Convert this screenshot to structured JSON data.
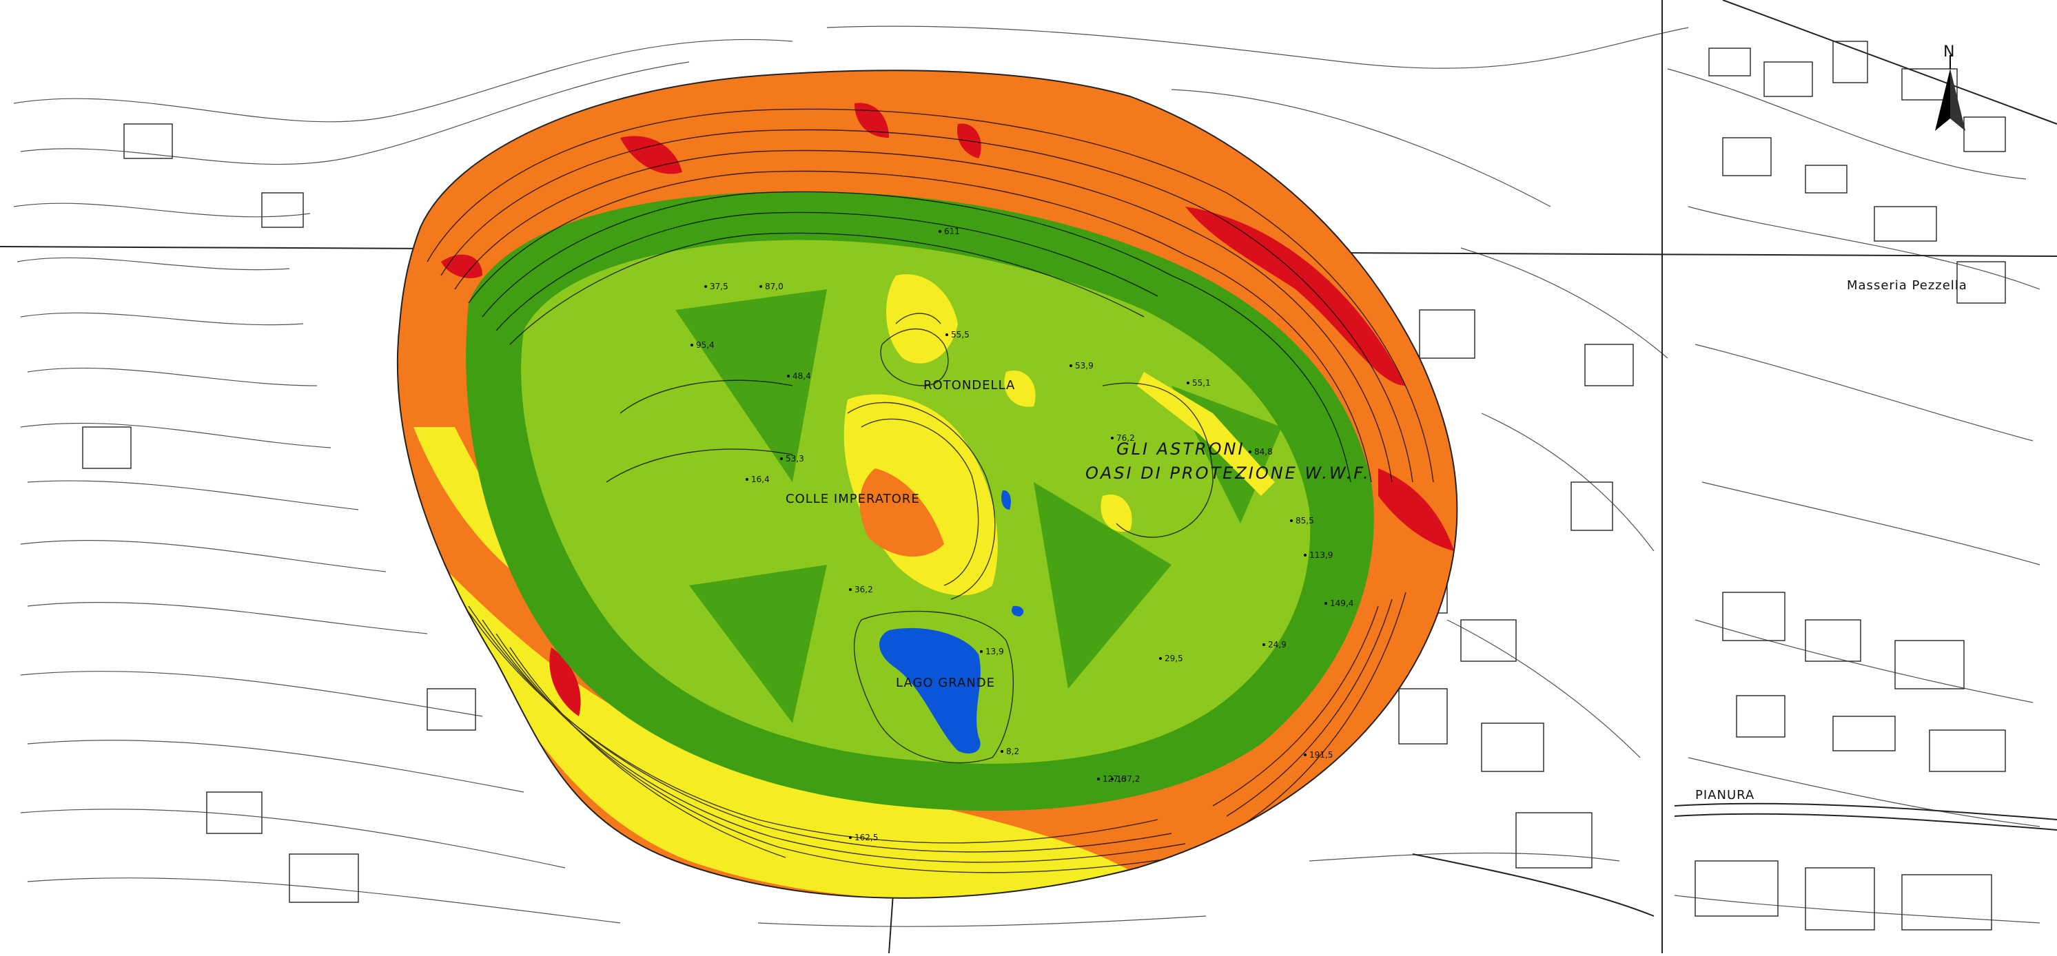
{
  "map": {
    "north_label": "N",
    "crater_title_line1": "GLI ASTRONI",
    "crater_title_line2": "OASI DI PROTEZIONE W.W.F.",
    "labels": {
      "colle_imperatore": "COLLE IMPERATORE",
      "lago_grande": "LAGO GRANDE",
      "rotondella": "ROTONDELLA",
      "masseria": "Masseria Pezzella",
      "pianura": "PIANURA"
    },
    "spot_heights": [
      "611",
      "55,5",
      "53,9",
      "76,2",
      "84,8",
      "85,5",
      "113,9",
      "55,1",
      "87,0",
      "95,4",
      "53,3",
      "29,5",
      "137,2",
      "127,6",
      "8,2",
      "13,9",
      "36,2",
      "37,5",
      "48,4",
      "24,9",
      "16,4",
      "162,5",
      "191,5",
      "149,4"
    ],
    "legend_colors": {
      "flat_green": "#3f9e12",
      "light_green": "#8cc81e",
      "yellow": "#f6ec22",
      "orange": "#f4781c",
      "red": "#d9101c",
      "lake_blue": "#0a55d8"
    }
  }
}
